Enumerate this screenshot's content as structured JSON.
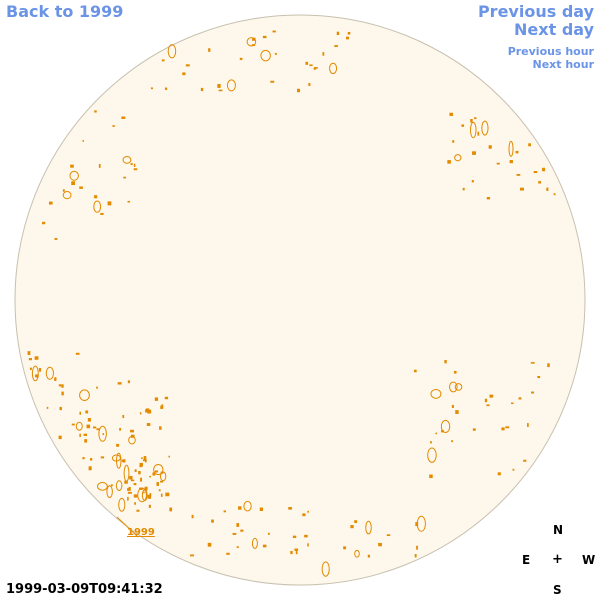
{
  "nav": {
    "back_label": "Back to 1999",
    "previous_day_label": "Previous day",
    "next_day_label": "Next day",
    "previous_hour_label": "Previous hour",
    "next_hour_label": "Next hour"
  },
  "timestamp": "1999-03-09T09:41:32",
  "compass": {
    "north": "N",
    "east": "E",
    "center": "+",
    "west": "W",
    "south": "S"
  },
  "marker_label": "1999",
  "colors": {
    "link": "#6b94e6",
    "disk_fill": "#fdf8eb",
    "disk_border": "#c8c0b0",
    "feature": "#e38a00"
  }
}
